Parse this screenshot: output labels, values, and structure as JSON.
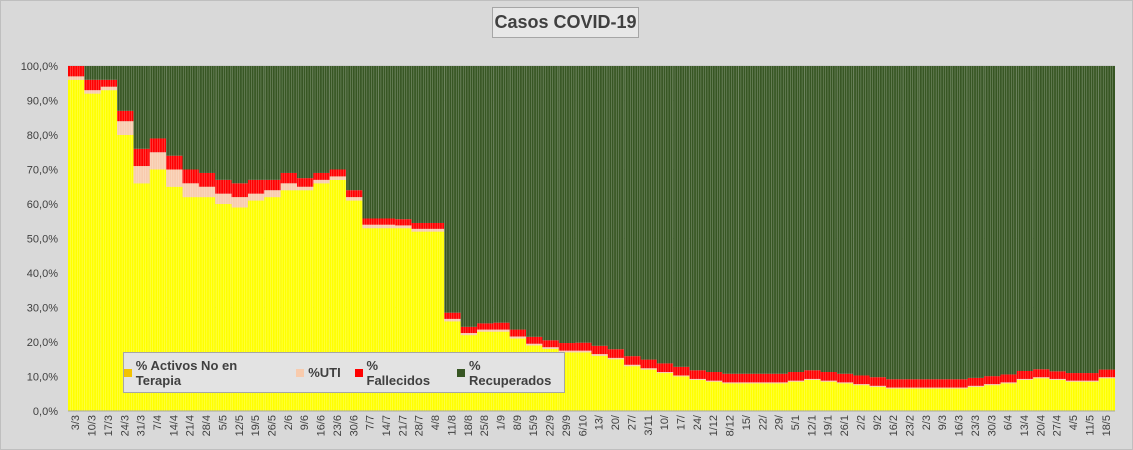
{
  "chart_data": {
    "type": "bar",
    "stacked": true,
    "title": "Casos  COVID-19",
    "ylim": [
      0,
      100
    ],
    "yticks": [
      "0,0%",
      "10,0%",
      "20,0%",
      "30,0%",
      "40,0%",
      "50,0%",
      "60,0%",
      "70,0%",
      "80,0%",
      "90,0%",
      "100,0%"
    ],
    "categories": [
      "3/3",
      "10/3",
      "17/3",
      "24/3",
      "31/3",
      "7/4",
      "14/4",
      "21/4",
      "28/4",
      "5/5",
      "12/5",
      "19/5",
      "26/5",
      "2/6",
      "9/6",
      "16/6",
      "23/6",
      "30/6",
      "7/7",
      "14/7",
      "21/7",
      "28/7",
      "4/8",
      "11/8",
      "18/8",
      "25/8",
      "1/9",
      "8/9",
      "15/9",
      "22/9",
      "29/9",
      "6/10",
      "13/",
      "20/",
      "27/",
      "3/11",
      "10/",
      "17/",
      "24/",
      "1/12",
      "8/12",
      "15/",
      "22/",
      "29/",
      "5/1",
      "12/1",
      "19/1",
      "26/1",
      "2/2",
      "9/2",
      "16/2",
      "23/2",
      "2/3",
      "9/3",
      "16/3",
      "23/3",
      "30/3",
      "6/4",
      "13/4",
      "20/4",
      "27/4",
      "4/5",
      "11/5",
      "18/5"
    ],
    "legend_position": "bottom-left",
    "series": [
      {
        "name": "% Activos No en Terapia",
        "color": "#ffff00",
        "values": [
          96,
          92,
          93,
          80,
          66,
          70,
          65,
          62,
          62,
          60,
          59,
          61,
          62,
          64,
          64,
          66,
          67,
          61,
          53,
          53,
          53,
          52,
          52,
          26,
          22,
          23,
          23,
          21,
          19,
          18,
          17,
          17,
          16,
          15,
          13,
          12,
          11,
          10,
          9,
          8.5,
          8,
          8,
          8,
          8,
          8.5,
          9,
          8.5,
          8,
          7.5,
          7,
          6.5,
          6.5,
          6.5,
          6.5,
          6.5,
          7,
          7.5,
          8,
          9,
          9.5,
          9,
          8.5,
          8.5,
          9.5
        ]
      },
      {
        "name": "%UTI",
        "color": "#f8cbad",
        "values": [
          1,
          1,
          1,
          4,
          5,
          5,
          5,
          4,
          3,
          3,
          3,
          2,
          2,
          2,
          1,
          1,
          1,
          1,
          1,
          1,
          0.8,
          0.8,
          0.8,
          0.7,
          0.6,
          0.6,
          0.6,
          0.6,
          0.5,
          0.5,
          0.5,
          0.5,
          0.5,
          0.4,
          0.4,
          0.4,
          0.3,
          0.3,
          0.3,
          0.3,
          0.3,
          0.3,
          0.3,
          0.3,
          0.3,
          0.3,
          0.3,
          0.3,
          0.3,
          0.3,
          0.3,
          0.3,
          0.3,
          0.3,
          0.3,
          0.3,
          0.3,
          0.3,
          0.3,
          0.3,
          0.3,
          0.3,
          0.3,
          0.3
        ]
      },
      {
        "name": "% Fallecidos",
        "color": "#ff0000",
        "values": [
          3,
          3,
          2,
          3,
          5,
          4,
          4,
          4,
          4,
          4,
          4,
          4,
          3,
          3,
          2.5,
          2,
          2,
          2,
          1.8,
          1.8,
          1.8,
          1.7,
          1.7,
          1.8,
          1.8,
          1.8,
          2,
          2,
          2,
          2,
          2.2,
          2.3,
          2.4,
          2.5,
          2.5,
          2.5,
          2.5,
          2.5,
          2.5,
          2.5,
          2.5,
          2.5,
          2.5,
          2.5,
          2.5,
          2.5,
          2.5,
          2.5,
          2.5,
          2.5,
          2.4,
          2.4,
          2.4,
          2.4,
          2.4,
          2.3,
          2.3,
          2.3,
          2.3,
          2.3,
          2.2,
          2.2,
          2.2,
          2.2
        ]
      },
      {
        "name": "% Recuperados",
        "color": "#375623",
        "values": [
          0,
          4,
          4,
          13,
          24,
          21,
          26,
          30,
          31,
          33,
          34,
          33,
          33,
          31,
          32.5,
          31,
          30,
          36,
          44.2,
          44.2,
          44.4,
          45.5,
          45.5,
          71.5,
          75.6,
          74.6,
          74.4,
          76.4,
          78.5,
          79.5,
          80.3,
          80.2,
          81.1,
          82.1,
          84.1,
          85.1,
          86.2,
          87.2,
          88.2,
          88.7,
          89.2,
          89.2,
          89.2,
          89.2,
          88.7,
          88.2,
          88.7,
          89.2,
          89.7,
          90.2,
          90.8,
          90.8,
          90.8,
          90.8,
          90.8,
          90.4,
          89.9,
          89.4,
          88.4,
          87.9,
          88.5,
          89,
          89,
          88
        ]
      }
    ]
  },
  "legend": {
    "activos": "% Activos No en Terapia",
    "uti": "%UTI",
    "fallecidos": "% Fallecidos",
    "recuperados": "% Recuperados"
  }
}
